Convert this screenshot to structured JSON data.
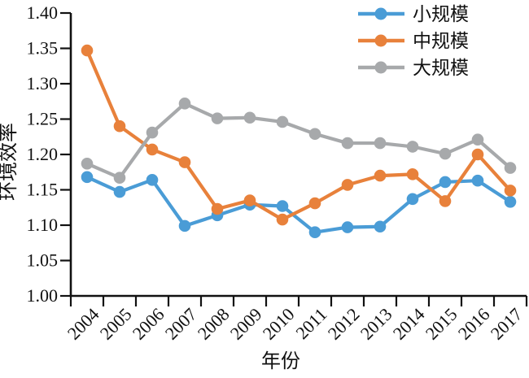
{
  "figure": {
    "background": "#ffffff",
    "axis_color": "#111111"
  },
  "chart_data": {
    "type": "line",
    "title": "",
    "xlabel": "年份",
    "ylabel": "环境效率",
    "x": [
      "2004",
      "2005",
      "2006",
      "2007",
      "2008",
      "2009",
      "2010",
      "2011",
      "2012",
      "2013",
      "2014",
      "2015",
      "2016",
      "2017"
    ],
    "ylim": [
      1.0,
      1.4
    ],
    "ytick_step": 0.05,
    "ytick_decimals": 2,
    "grid": false,
    "legend_position": "top-right",
    "series": [
      {
        "name": "小规模",
        "color": "#4A9CD6",
        "values": [
          1.168,
          1.147,
          1.164,
          1.099,
          1.114,
          1.129,
          1.127,
          1.09,
          1.097,
          1.098,
          1.137,
          1.161,
          1.163,
          1.133
        ]
      },
      {
        "name": "中规模",
        "color": "#E8813B",
        "values": [
          1.347,
          1.24,
          1.207,
          1.189,
          1.123,
          1.135,
          1.108,
          1.131,
          1.157,
          1.17,
          1.172,
          1.134,
          1.2,
          1.149
        ]
      },
      {
        "name": "大规模",
        "color": "#A7A9AB",
        "values": [
          1.187,
          1.167,
          1.231,
          1.272,
          1.251,
          1.252,
          1.246,
          1.229,
          1.216,
          1.216,
          1.211,
          1.201,
          1.221,
          1.181
        ]
      }
    ]
  }
}
